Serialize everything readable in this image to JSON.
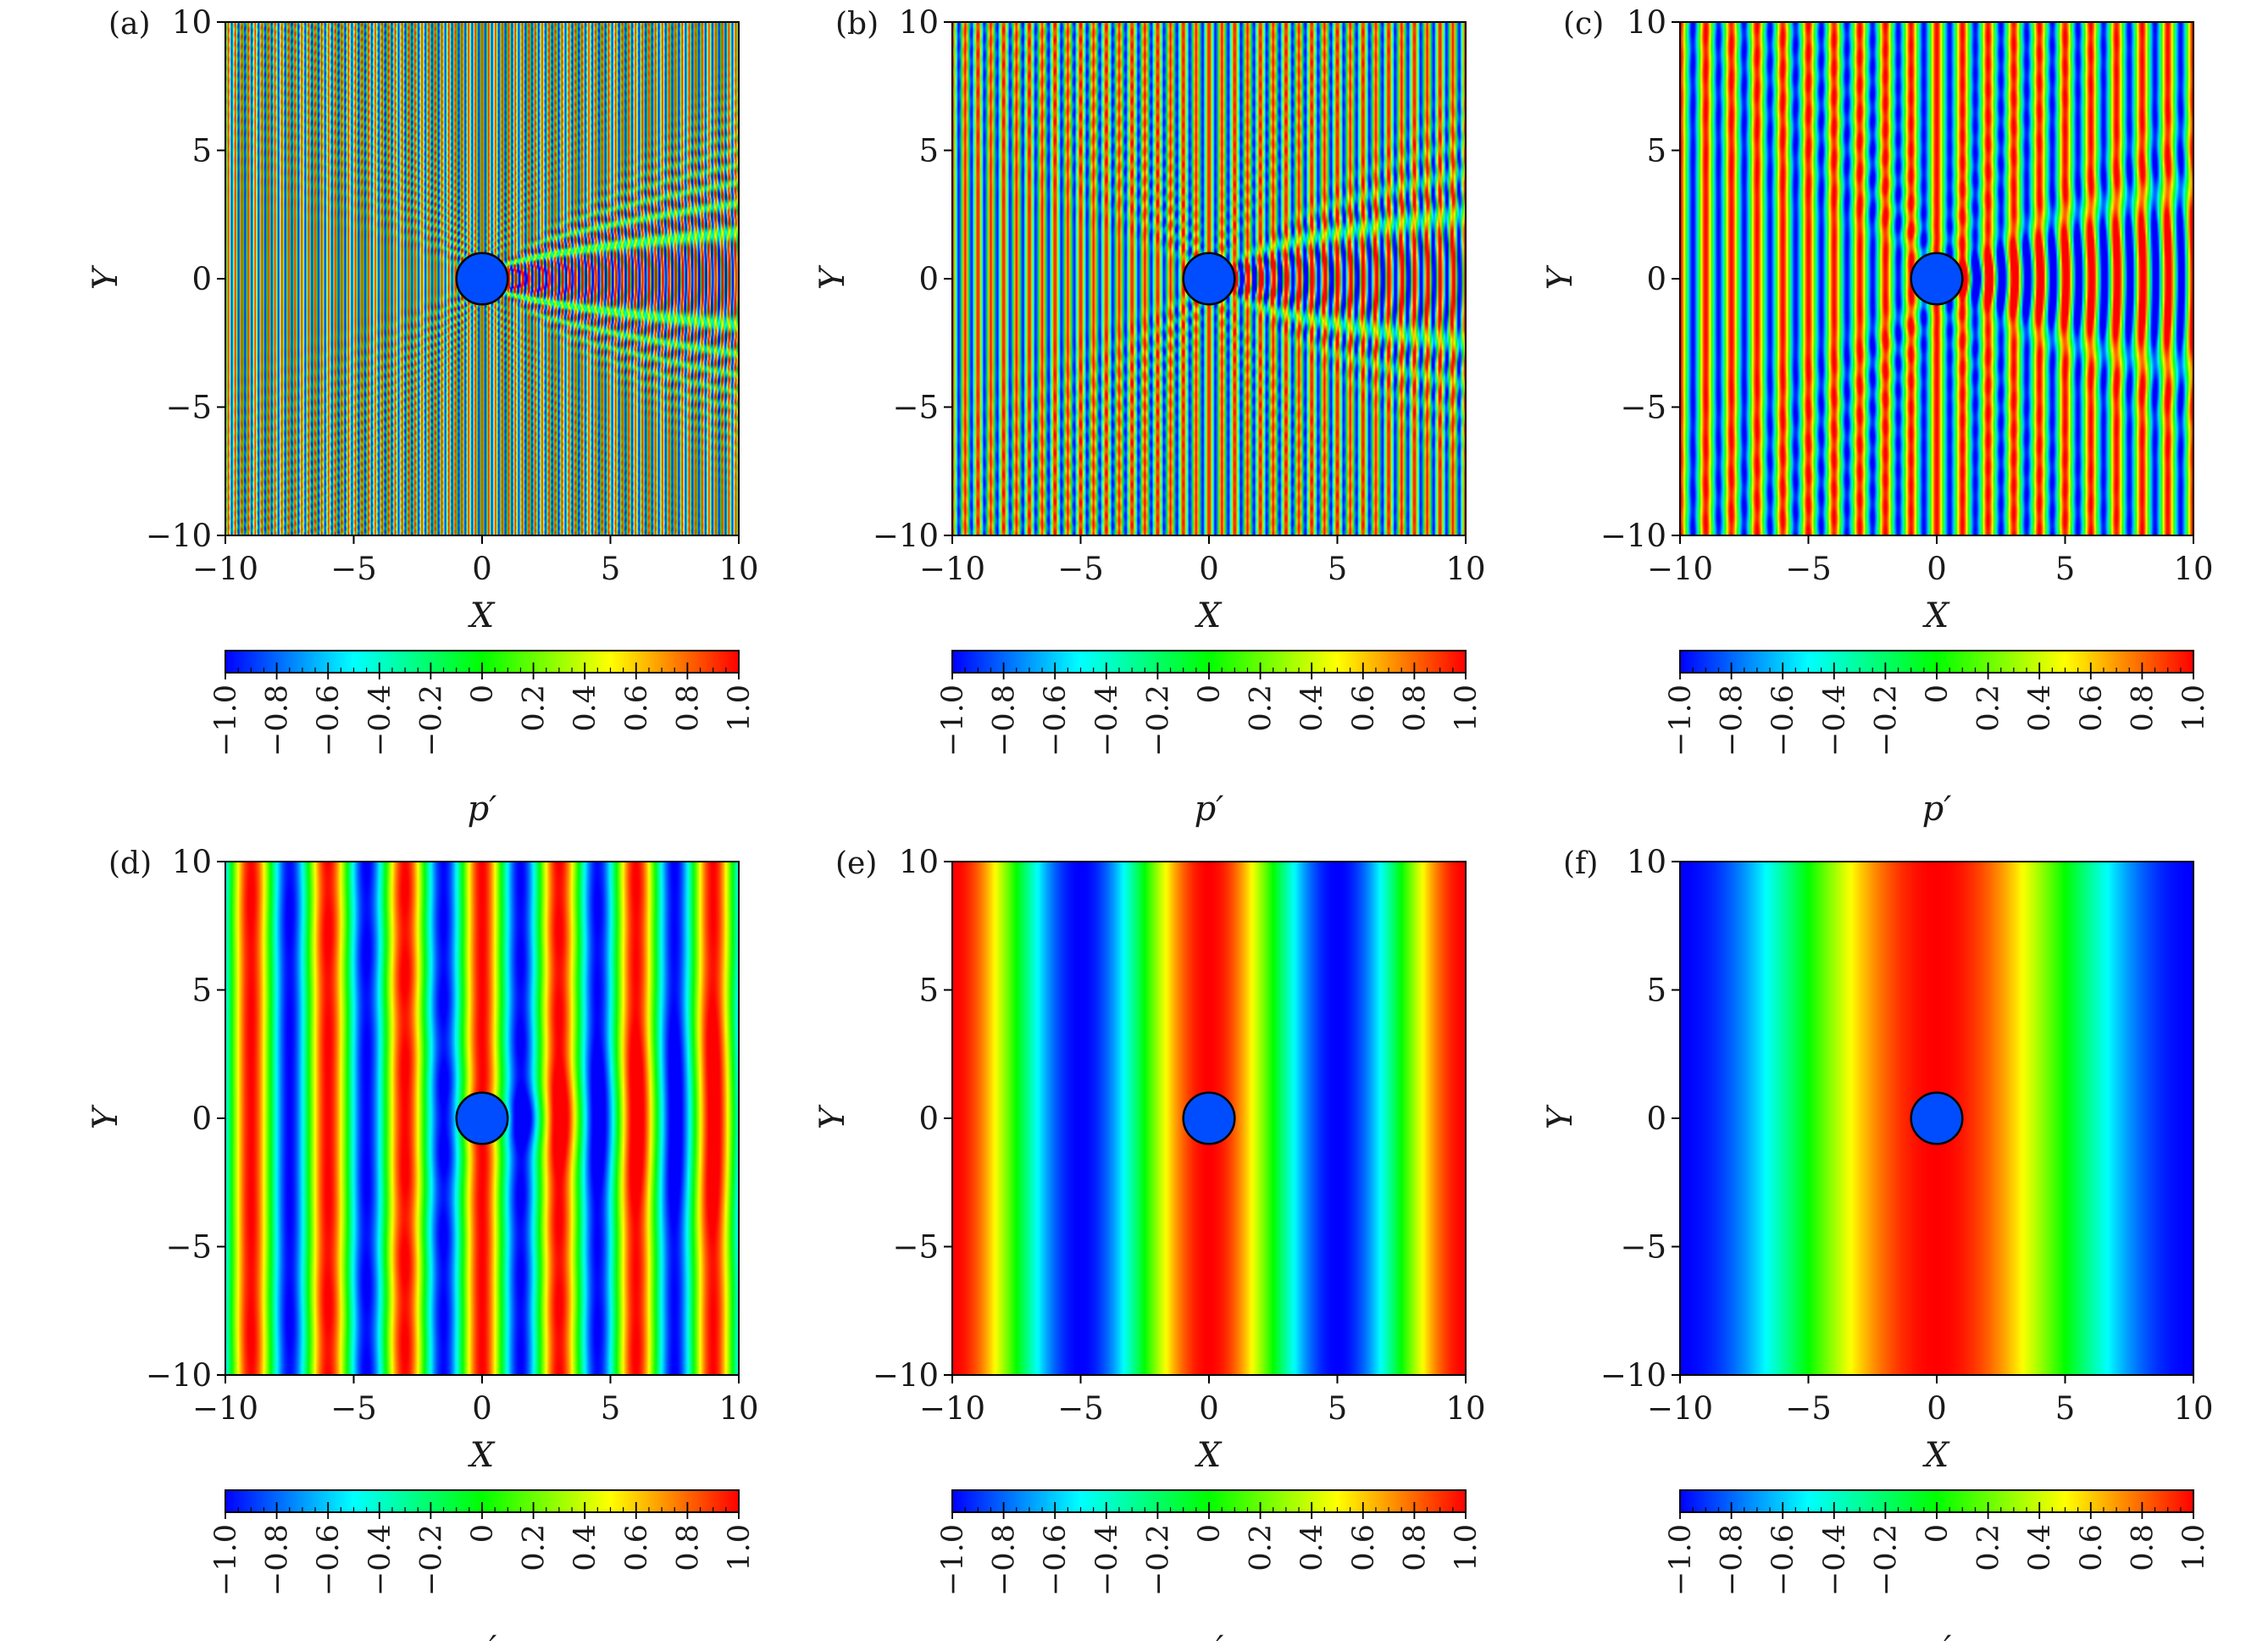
{
  "colormap": [
    "#0000ff",
    "#0080ff",
    "#00ffff",
    "#00ff80",
    "#00ff00",
    "#80ff00",
    "#ffff00",
    "#ff8000",
    "#ff0000"
  ],
  "colors": {
    "obstacle_outline": "#000000",
    "axis": "#000000",
    "background": "#ffffff"
  },
  "chart_data": [
    {
      "type": "heatmap",
      "panel": "(a)",
      "xlabel": "X",
      "ylabel": "Y",
      "xlim": [
        -10,
        10
      ],
      "ylim": [
        -10,
        10
      ],
      "xticks": [
        "−10",
        "−5",
        "0",
        "5",
        "10"
      ],
      "yticks": [
        "−10",
        "−5",
        "0",
        "5",
        "10"
      ],
      "colorbar": {
        "label": "p′",
        "range": [
          -1.0,
          1.0
        ],
        "ticks": [
          "−1.0",
          "−0.8",
          "−0.6",
          "−0.4",
          "−0.2",
          "0",
          "0.2",
          "0.4",
          "0.6",
          "0.8",
          "1.0"
        ]
      },
      "field": {
        "incident_wavelength": 0.26,
        "shadow": "strong",
        "obstacle": {
          "center": [
            0,
            0
          ],
          "radius": 1
        }
      }
    },
    {
      "type": "heatmap",
      "panel": "(b)",
      "xlabel": "X",
      "ylabel": "Y",
      "xlim": [
        -10,
        10
      ],
      "ylim": [
        -10,
        10
      ],
      "xticks": [
        "−10",
        "−5",
        "0",
        "5",
        "10"
      ],
      "yticks": [
        "−10",
        "−5",
        "0",
        "5",
        "10"
      ],
      "colorbar": {
        "label": "p′",
        "range": [
          -1.0,
          1.0
        ],
        "ticks": [
          "−1.0",
          "−0.8",
          "−0.6",
          "−0.4",
          "−0.2",
          "0",
          "0.2",
          "0.4",
          "0.6",
          "0.8",
          "1.0"
        ]
      },
      "field": {
        "incident_wavelength": 0.5,
        "shadow": "medium",
        "obstacle": {
          "center": [
            0,
            0
          ],
          "radius": 1
        }
      }
    },
    {
      "type": "heatmap",
      "panel": "(c)",
      "xlabel": "X",
      "ylabel": "Y",
      "xlim": [
        -10,
        10
      ],
      "ylim": [
        -10,
        10
      ],
      "xticks": [
        "−10",
        "−5",
        "0",
        "5",
        "10"
      ],
      "yticks": [
        "−10",
        "−5",
        "0",
        "5",
        "10"
      ],
      "colorbar": {
        "label": "p′",
        "range": [
          -1.0,
          1.0
        ],
        "ticks": [
          "−1.0",
          "−0.8",
          "−0.6",
          "−0.4",
          "−0.2",
          "0",
          "0.2",
          "0.4",
          "0.6",
          "0.8",
          "1.0"
        ]
      },
      "field": {
        "incident_wavelength": 1.0,
        "shadow": "weak",
        "obstacle": {
          "center": [
            0,
            0
          ],
          "radius": 1
        }
      }
    },
    {
      "type": "heatmap",
      "panel": "(d)",
      "xlabel": "X",
      "ylabel": "Y",
      "xlim": [
        -10,
        10
      ],
      "ylim": [
        -10,
        10
      ],
      "xticks": [
        "−10",
        "−5",
        "0",
        "5",
        "10"
      ],
      "yticks": [
        "−10",
        "−5",
        "0",
        "5",
        "10"
      ],
      "colorbar": {
        "label": "p′",
        "range": [
          -1.0,
          1.0
        ],
        "ticks": [
          "−1.0",
          "−0.8",
          "−0.6",
          "−0.4",
          "−0.2",
          "0",
          "0.2",
          "0.4",
          "0.6",
          "0.8",
          "1.0"
        ]
      },
      "field": {
        "incident_wavelength": 3.0,
        "shadow": "slight",
        "obstacle": {
          "center": [
            0,
            0
          ],
          "radius": 1
        }
      }
    },
    {
      "type": "heatmap",
      "panel": "(e)",
      "xlabel": "X",
      "ylabel": "Y",
      "xlim": [
        -10,
        10
      ],
      "ylim": [
        -10,
        10
      ],
      "xticks": [
        "−10",
        "−5",
        "0",
        "5",
        "10"
      ],
      "yticks": [
        "−10",
        "−5",
        "0",
        "5",
        "10"
      ],
      "colorbar": {
        "label": "p′",
        "range": [
          -1.0,
          1.0
        ],
        "ticks": [
          "−1.0",
          "−0.8",
          "−0.6",
          "−0.4",
          "−0.2",
          "0",
          "0.2",
          "0.4",
          "0.6",
          "0.8",
          "1.0"
        ]
      },
      "field": {
        "incident_wavelength": 10.0,
        "shadow": "none",
        "obstacle": {
          "center": [
            0,
            0
          ],
          "radius": 1
        }
      }
    },
    {
      "type": "heatmap",
      "panel": "(f)",
      "xlabel": "X",
      "ylabel": "Y",
      "xlim": [
        -10,
        10
      ],
      "ylim": [
        -10,
        10
      ],
      "xticks": [
        "−10",
        "−5",
        "0",
        "5",
        "10"
      ],
      "yticks": [
        "−10",
        "−5",
        "0",
        "5",
        "10"
      ],
      "colorbar": {
        "label": "p′",
        "range": [
          -1.0,
          1.0
        ],
        "ticks": [
          "−1.0",
          "−0.8",
          "−0.6",
          "−0.4",
          "−0.2",
          "0",
          "0.2",
          "0.4",
          "0.6",
          "0.8",
          "1.0"
        ]
      },
      "field": {
        "incident_wavelength": 20.0,
        "shadow": "none",
        "obstacle": {
          "center": [
            0,
            0
          ],
          "radius": 1
        }
      }
    }
  ]
}
